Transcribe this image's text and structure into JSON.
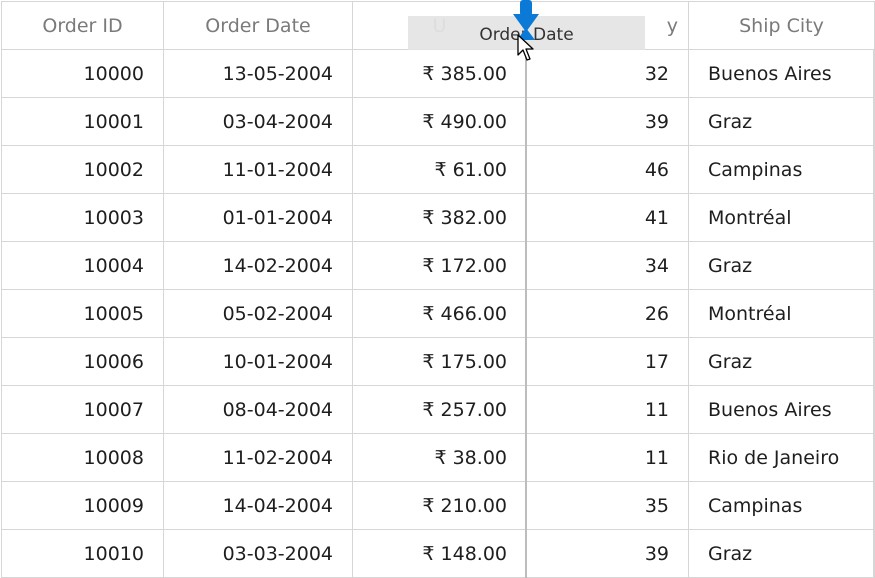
{
  "grid": {
    "columns": [
      {
        "label": "Order ID"
      },
      {
        "label": "Order Date"
      },
      {
        "label": "U"
      },
      {
        "label": "y"
      },
      {
        "label": "Ship City"
      }
    ],
    "rows": [
      {
        "id": "10000",
        "date": "13-05-2004",
        "price": "₹ 385.00",
        "qty": "32",
        "city": "Buenos Aires"
      },
      {
        "id": "10001",
        "date": "03-04-2004",
        "price": "₹ 490.00",
        "qty": "39",
        "city": "Graz"
      },
      {
        "id": "10002",
        "date": "11-01-2004",
        "price": "₹ 61.00",
        "qty": "46",
        "city": "Campinas"
      },
      {
        "id": "10003",
        "date": "01-01-2004",
        "price": "₹ 382.00",
        "qty": "41",
        "city": "Montréal"
      },
      {
        "id": "10004",
        "date": "14-02-2004",
        "price": "₹ 172.00",
        "qty": "34",
        "city": "Graz"
      },
      {
        "id": "10005",
        "date": "05-02-2004",
        "price": "₹ 466.00",
        "qty": "26",
        "city": "Montréal"
      },
      {
        "id": "10006",
        "date": "10-01-2004",
        "price": "₹ 175.00",
        "qty": "17",
        "city": "Graz"
      },
      {
        "id": "10007",
        "date": "08-04-2004",
        "price": "₹ 257.00",
        "qty": "11",
        "city": "Buenos Aires"
      },
      {
        "id": "10008",
        "date": "11-02-2004",
        "price": "₹ 38.00",
        "qty": "11",
        "city": "Rio de Janeiro"
      },
      {
        "id": "10009",
        "date": "14-04-2004",
        "price": "₹ 210.00",
        "qty": "35",
        "city": "Campinas"
      },
      {
        "id": "10010",
        "date": "03-03-2004",
        "price": "₹ 148.00",
        "qty": "39",
        "city": "Graz"
      }
    ]
  },
  "drag": {
    "ghost_label": "Order Date",
    "indicator_icon": "drop-indicator-arrow",
    "cursor_icon": "pointer-cursor",
    "accent": "#0a7ad6"
  },
  "colors": {
    "border": "#d6d6d6",
    "header_text": "#7a7a7a",
    "cell_text": "#1e1e1e"
  }
}
